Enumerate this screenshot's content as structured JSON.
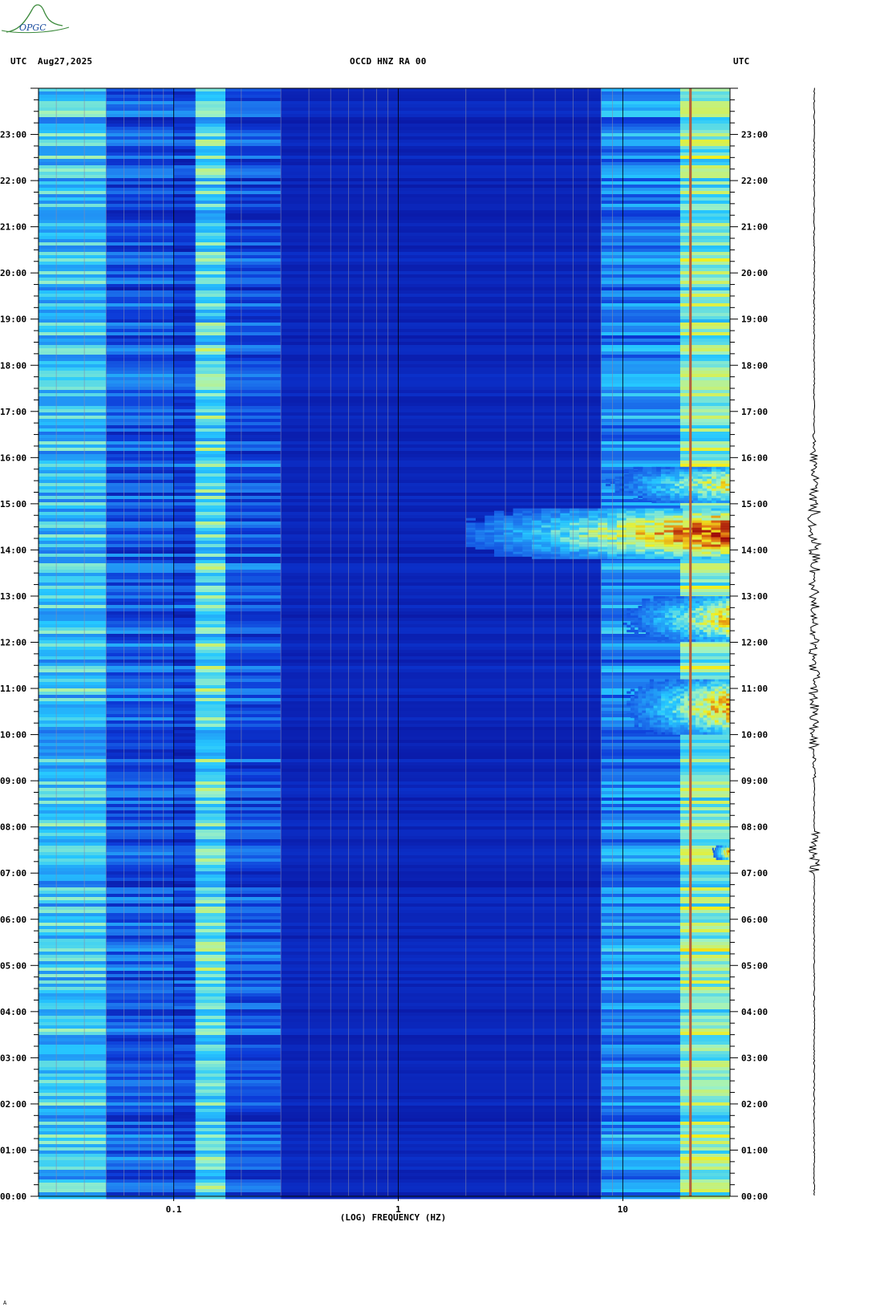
{
  "header": {
    "left_tz": "UTC",
    "date": "Aug27,2025",
    "station": "OCCD HNZ RA 00",
    "right_tz": "UTC"
  },
  "logo": {
    "text": "OPGC",
    "color": "#3c8a3c"
  },
  "footer_mark": "A",
  "chart_data": {
    "type": "heatmap",
    "title": "OCCD HNZ RA 00",
    "xlabel": "(LOG) FREQUENCY (HZ)",
    "ylabel": "",
    "x_scale": "log",
    "xlim": [
      0.025,
      30
    ],
    "x_ticks": [
      {
        "value": 0.1,
        "label": "0.1"
      },
      {
        "value": 1,
        "label": "1"
      },
      {
        "value": 10,
        "label": "10"
      }
    ],
    "ylim": [
      0,
      24
    ],
    "y_ticks_hours": [
      {
        "value": 0,
        "label": "00:00"
      },
      {
        "value": 1,
        "label": "01:00"
      },
      {
        "value": 2,
        "label": "02:00"
      },
      {
        "value": 3,
        "label": "03:00"
      },
      {
        "value": 4,
        "label": "04:00"
      },
      {
        "value": 5,
        "label": "05:00"
      },
      {
        "value": 6,
        "label": "06:00"
      },
      {
        "value": 7,
        "label": "07:00"
      },
      {
        "value": 8,
        "label": "08:00"
      },
      {
        "value": 9,
        "label": "09:00"
      },
      {
        "value": 10,
        "label": "10:00"
      },
      {
        "value": 11,
        "label": "11:00"
      },
      {
        "value": 12,
        "label": "12:00"
      },
      {
        "value": 13,
        "label": "13:00"
      },
      {
        "value": 14,
        "label": "14:00"
      },
      {
        "value": 15,
        "label": "15:00"
      },
      {
        "value": 16,
        "label": "16:00"
      },
      {
        "value": 17,
        "label": "17:00"
      },
      {
        "value": 18,
        "label": "18:00"
      },
      {
        "value": 19,
        "label": "19:00"
      },
      {
        "value": 20,
        "label": "20:00"
      },
      {
        "value": 21,
        "label": "21:00"
      },
      {
        "value": 22,
        "label": "22:00"
      },
      {
        "value": 23,
        "label": "23:00"
      }
    ],
    "colormap": [
      "#0a1aa8",
      "#0c3ad8",
      "#1f7ef0",
      "#26c8ff",
      "#9ff2c4",
      "#f2ef1e",
      "#e07010",
      "#a00a0a"
    ],
    "frequency_bands": [
      {
        "f_min": 0.025,
        "f_max": 0.05,
        "level": 0.42
      },
      {
        "f_min": 0.05,
        "f_max": 0.1,
        "level": 0.2
      },
      {
        "f_min": 0.1,
        "f_max": 0.125,
        "level": 0.15
      },
      {
        "f_min": 0.125,
        "f_max": 0.17,
        "level": 0.48
      },
      {
        "f_min": 0.17,
        "f_max": 0.3,
        "level": 0.18
      },
      {
        "f_min": 0.3,
        "f_max": 8,
        "level": 0.05
      },
      {
        "f_min": 8,
        "f_max": 18,
        "level": 0.3
      },
      {
        "f_min": 18,
        "f_max": 30,
        "level": 0.55
      }
    ],
    "persistent_line_hz": 20,
    "events": [
      {
        "start_hour": 13.8,
        "end_hour": 14.9,
        "f_min": 2,
        "f_max": 30,
        "peak_level": 1.0
      },
      {
        "start_hour": 10.0,
        "end_hour": 11.2,
        "f_min": 10,
        "f_max": 30,
        "peak_level": 0.85
      },
      {
        "start_hour": 12.0,
        "end_hour": 13.0,
        "f_min": 10,
        "f_max": 30,
        "peak_level": 0.8
      },
      {
        "start_hour": 15.0,
        "end_hour": 15.8,
        "f_min": 8,
        "f_max": 30,
        "peak_level": 0.75
      },
      {
        "start_hour": 7.3,
        "end_hour": 7.6,
        "f_min": 25,
        "f_max": 30,
        "peak_level": 0.9
      }
    ],
    "trace_label": "seismogram"
  }
}
